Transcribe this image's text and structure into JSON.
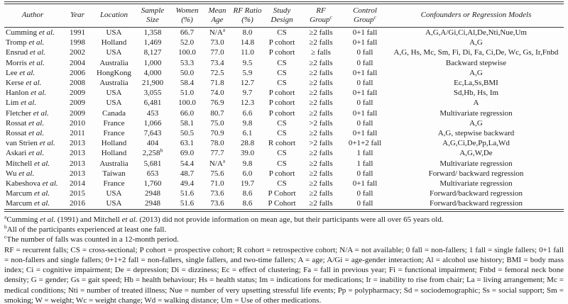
{
  "table": {
    "columns": [
      {
        "key": "author",
        "label": "Author"
      },
      {
        "key": "year",
        "label": "Year"
      },
      {
        "key": "location",
        "label": "Location"
      },
      {
        "key": "sample",
        "label": "Sample\nSize"
      },
      {
        "key": "women",
        "label": "Women\n(%)"
      },
      {
        "key": "age",
        "label": "Mean\nAge"
      },
      {
        "key": "rf_ratio",
        "label": "RF Ratio\n(%)"
      },
      {
        "key": "design",
        "label": "Study\nDesign"
      },
      {
        "key": "rf_group",
        "label": "RF\nGroup",
        "sup": "c"
      },
      {
        "key": "control",
        "label": "Control\nGroup",
        "sup": "c"
      },
      {
        "key": "confounders",
        "label": "Confounders or Regression Models"
      }
    ],
    "rows": [
      {
        "author": "Cumming et al.",
        "year": "1991",
        "location": "USA",
        "sample": "1,358",
        "women": "66.7",
        "age": "N/A",
        "age_sup": "a",
        "rf_ratio": "8.0",
        "design": "CS",
        "rf_group": "≥2 falls",
        "control": "0+1 fall",
        "confounders": "A,G,A/Gi,Ci,Al,De,Nti,Nue,Um"
      },
      {
        "author": "Tromp et al.",
        "year": "1998",
        "location": "Holland",
        "sample": "1,469",
        "women": "52.0",
        "age": "73.0",
        "rf_ratio": "14.8",
        "design": "P cohort",
        "rf_group": "≥2 falls",
        "control": "0+1 fall",
        "confounders": "A,G"
      },
      {
        "author": "Ensrud et al.",
        "year": "2002",
        "location": "USA",
        "sample": "8,127",
        "women": "100.0",
        "age": "77.0",
        "rf_ratio": "11.0",
        "design": "P cohort",
        "rf_group": "≥ falls",
        "control": "0 fall",
        "confounders": "A,G, Hs, Mc, Sm, Fi, Di, Fa, Ci,De, Wc, Gs, Ir,Fnbd"
      },
      {
        "author": "Morris et al.",
        "year": "2004",
        "location": "Australia",
        "sample": "1,000",
        "women": "53.3",
        "age": "73.4",
        "rf_ratio": "9.5",
        "design": "CS",
        "rf_group": "≥2 falls",
        "control": "0 fall",
        "confounders": "Backward stepwise"
      },
      {
        "author": "Lee et al.",
        "year": "2006",
        "location": "HongKong",
        "sample": "4,000",
        "women": "50.0",
        "age": "72.5",
        "rf_ratio": "5.9",
        "design": "CS",
        "rf_group": "≥2 falls",
        "control": "0+1 fall",
        "confounders": "A,G"
      },
      {
        "author": "Kerse et al.",
        "year": "2008",
        "location": "Australia",
        "sample": "21,900",
        "women": "58.4",
        "age": "71.8",
        "rf_ratio": "12.7",
        "design": "CS",
        "rf_group": "≥2 falls",
        "control": "0 fall",
        "confounders": "Ec,La,Ss,BMI"
      },
      {
        "author": "Hanlon et al.",
        "year": "2009",
        "location": "USA",
        "sample": "3,055",
        "women": "51.0",
        "age": "74.0",
        "rf_ratio": "9.7",
        "design": "P cohort",
        "rf_group": "≥2 falls",
        "control": "0+1 fall",
        "confounders": "Sd,Hb, Hs, Im"
      },
      {
        "author": "Lim et al.",
        "year": "2009",
        "location": "USA",
        "sample": "6,481",
        "women": "100.0",
        "age": "76.9",
        "rf_ratio": "12.3",
        "design": "P cohort",
        "rf_group": "≥2 falls",
        "control": "0 fall",
        "confounders": "A"
      },
      {
        "author": "Fletcher et al.",
        "year": "2009",
        "location": "Canada",
        "sample": "453",
        "women": "66.0",
        "age": "80.7",
        "rf_ratio": "6.6",
        "design": "P cohort",
        "rf_group": "≥2 falls",
        "control": "0+1 fall",
        "confounders": "Multivariate regression"
      },
      {
        "author": "Rossat et al.",
        "year": "2010",
        "location": "France",
        "sample": "1,066",
        "women": "58.1",
        "age": "75.0",
        "rf_ratio": "9.8",
        "design": "CS",
        "rf_group": ">2 falls",
        "control": "0 fall",
        "confounders": "A,G"
      },
      {
        "author": "Rossat et al.",
        "year": "2011",
        "location": "France",
        "sample": "7,643",
        "women": "50.5",
        "age": "70.9",
        "rf_ratio": "6.1",
        "design": "CS",
        "rf_group": "≥2 falls",
        "control": "0+1 fall",
        "confounders": "A,G, stepwise backward"
      },
      {
        "author": "van Strien et al.",
        "year": "2013",
        "location": "Holland",
        "sample": "404",
        "women": "63.1",
        "age": "78.0",
        "rf_ratio": "28.8",
        "design": "R cohort",
        "rf_group": ">2 falls",
        "control": "0+1+2 fall",
        "confounders": "A,G,Ci,De,Pp,La,Wd"
      },
      {
        "author": "Askari et al.",
        "year": "2013",
        "location": "Holland",
        "sample": "2,258",
        "sample_sup": "b",
        "women": "69.0",
        "age": "77.7",
        "rf_ratio": "39.0",
        "design": "CS",
        "rf_group": "≥2 falls",
        "control": "1 fall",
        "confounders": "A,G,W,De"
      },
      {
        "author": "Mitchell et al.",
        "year": "2013",
        "location": "Australia",
        "sample": "5,681",
        "women": "54.4",
        "age": "N/A",
        "age_sup": "a",
        "rf_ratio": "9.8",
        "design": "CS",
        "rf_group": "≥2 falls",
        "control": "1 fall",
        "confounders": "Multivariate regression"
      },
      {
        "author": "Wu et al.",
        "year": "2013",
        "location": "Taiwan",
        "sample": "653",
        "women": "48.7",
        "age": "75.6",
        "rf_ratio": "6.0",
        "design": "P cohort",
        "rf_group": "≥2 falls",
        "control": "0 fall",
        "confounders": "Forward/ backward regression"
      },
      {
        "author": "Kabeshova et al.",
        "year": "2014",
        "location": "France",
        "sample": "1,760",
        "women": "49.4",
        "age": "71.0",
        "rf_ratio": "19.7",
        "design": "CS",
        "rf_group": "≥2 falls",
        "control": "0+1 fall",
        "confounders": "Multivariate regression"
      },
      {
        "author": "Marcum et al.",
        "year": "2015",
        "location": "USA",
        "sample": "2948",
        "women": "51.6",
        "age": "73.6",
        "rf_ratio": "8.6",
        "design": "P Cohort",
        "rf_group": "≥2 falls",
        "control": "0 fall",
        "confounders": "Forward/backward regression"
      },
      {
        "author": "Marcum et al.",
        "year": "2016",
        "location": "USA",
        "sample": "2948",
        "women": "51.6",
        "age": "73.6",
        "rf_ratio": "8.6",
        "design": "P Cohort",
        "rf_group": "≥2 falls",
        "control": "0 fall",
        "confounders": "Forward/backward regression"
      }
    ]
  },
  "footnotes": [
    {
      "marker": "a",
      "text": "Cumming et al. (1991) and Mitchell et al. (2013) did not provide information on mean age, but their participants were all over 65 years old.",
      "justify": false
    },
    {
      "marker": "b",
      "text": "All of the participants experienced at least one fall.",
      "justify": false
    },
    {
      "marker": "c",
      "text": "The number of falls was counted in a 12-month period.",
      "justify": false
    },
    {
      "marker": "",
      "text": "RF = recurrent falls; CS = cross-sectional; P cohort = prospective cohort; R cohort = retrospective cohort; N/A = not available; 0 fall = non-fallers; 1 fall = single fallers; 0+1 fall = non-fallers and single fallers; 0+1+2 fall = non-fallers, single fallers, and two-time fallers; A = age; A/Gi = age-gender interaction; Al = alcohol use history; BMI = body mass index; Ci = cognitive impairment; De = depression; Di = dizziness; Ec = effect of clustering; Fa = fall in previous year; Fi = functional impairment; Fnbd = femoral neck bone density; G = gender; Gs = gait speed; Hb = health behaviour; Hs = health status; Im = indications for medications; Ir = inability to rise from chair; La = living arrangement; Mc = medical conditions; Nti = number of treated illness; Nue = number of very upsetting stressful life events; Pp = polypharmacy; Sd = sociodemographic; Ss = social support; Sm = smoking; W = weight; Wc = weight change; Wd = walking distance; Um = Use of other medications.",
      "justify": true
    }
  ]
}
